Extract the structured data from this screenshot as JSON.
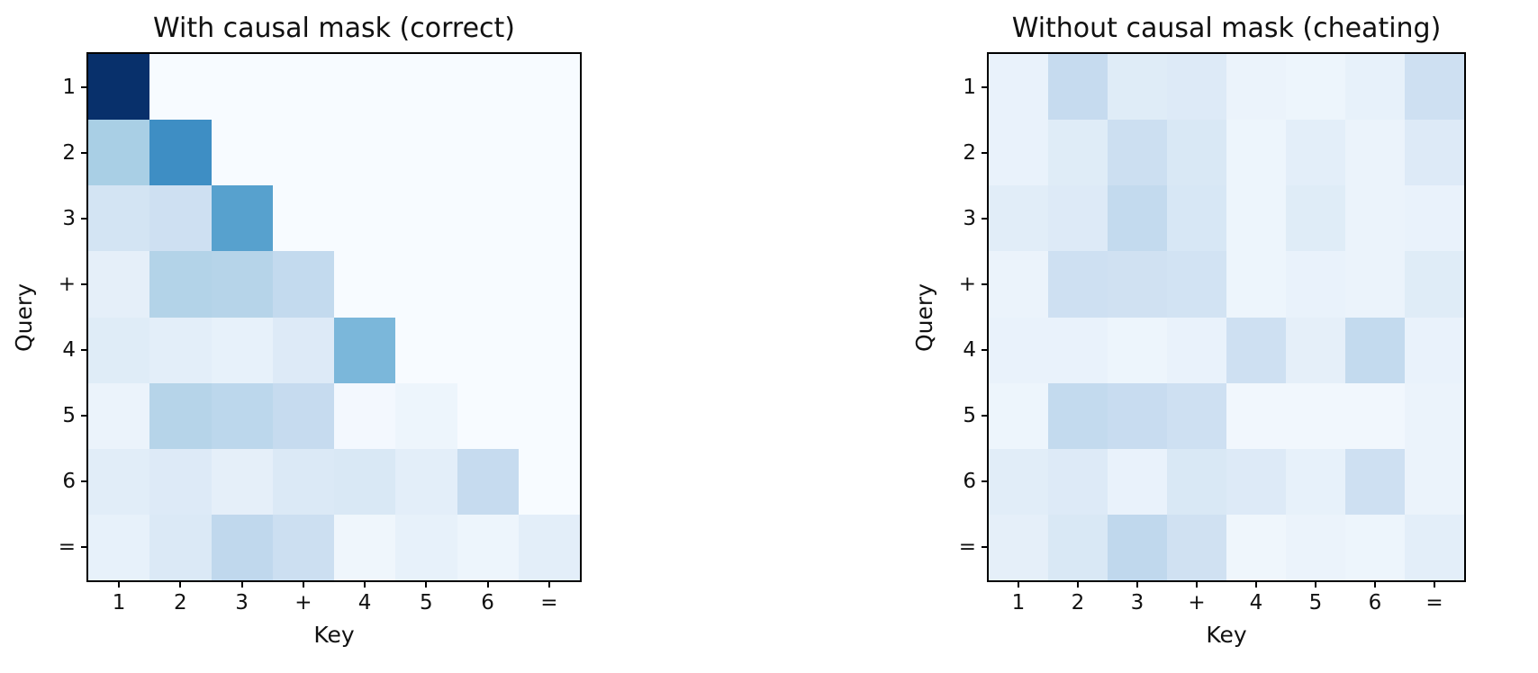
{
  "figure": {
    "background": "#ffffff",
    "text_color": "#111111",
    "colormap_name": "Blues",
    "colormap_anchors": [
      "#f7fbff",
      "#deebf7",
      "#c6dbef",
      "#9ecae1",
      "#6baed6",
      "#4292c6",
      "#2171b5",
      "#08519c",
      "#08306b"
    ]
  },
  "chart_data": [
    {
      "type": "heatmap",
      "title": "With causal mask (correct)",
      "xlabel": "Key",
      "ylabel": "Query",
      "x_ticklabels": [
        "1",
        "2",
        "3",
        "+",
        "4",
        "5",
        "6",
        "="
      ],
      "y_ticklabels": [
        "1",
        "2",
        "3",
        "+",
        "4",
        "5",
        "6",
        "="
      ],
      "vmin": 0,
      "vmax": 1,
      "values": [
        [
          1.0,
          0.0,
          0.0,
          0.0,
          0.0,
          0.0,
          0.0,
          0.0
        ],
        [
          0.34,
          0.64,
          0.0,
          0.0,
          0.0,
          0.0,
          0.0,
          0.0
        ],
        [
          0.18,
          0.21,
          0.56,
          0.0,
          0.0,
          0.0,
          0.0,
          0.0
        ],
        [
          0.09,
          0.31,
          0.3,
          0.26,
          0.0,
          0.0,
          0.0,
          0.0
        ],
        [
          0.12,
          0.1,
          0.08,
          0.13,
          0.46,
          0.0,
          0.0,
          0.0
        ],
        [
          0.06,
          0.3,
          0.28,
          0.25,
          0.02,
          0.05,
          0.0,
          0.0
        ],
        [
          0.11,
          0.13,
          0.09,
          0.14,
          0.15,
          0.1,
          0.25,
          0.0
        ],
        [
          0.08,
          0.14,
          0.27,
          0.22,
          0.04,
          0.08,
          0.05,
          0.1
        ]
      ]
    },
    {
      "type": "heatmap",
      "title": "Without causal mask (cheating)",
      "xlabel": "Key",
      "ylabel": "Query",
      "x_ticklabels": [
        "1",
        "2",
        "3",
        "+",
        "4",
        "5",
        "6",
        "="
      ],
      "y_ticklabels": [
        "1",
        "2",
        "3",
        "+",
        "4",
        "5",
        "6",
        "="
      ],
      "vmin": 0,
      "vmax": 1,
      "values": [
        [
          0.07,
          0.25,
          0.12,
          0.13,
          0.06,
          0.05,
          0.08,
          0.21
        ],
        [
          0.07,
          0.12,
          0.22,
          0.15,
          0.05,
          0.1,
          0.06,
          0.13
        ],
        [
          0.11,
          0.13,
          0.26,
          0.16,
          0.05,
          0.12,
          0.06,
          0.07
        ],
        [
          0.06,
          0.21,
          0.2,
          0.19,
          0.05,
          0.07,
          0.06,
          0.12
        ],
        [
          0.07,
          0.07,
          0.05,
          0.07,
          0.21,
          0.09,
          0.26,
          0.07
        ],
        [
          0.05,
          0.26,
          0.24,
          0.21,
          0.03,
          0.03,
          0.03,
          0.06
        ],
        [
          0.11,
          0.13,
          0.07,
          0.15,
          0.13,
          0.08,
          0.21,
          0.06
        ],
        [
          0.09,
          0.15,
          0.27,
          0.2,
          0.04,
          0.06,
          0.05,
          0.1
        ]
      ]
    }
  ]
}
